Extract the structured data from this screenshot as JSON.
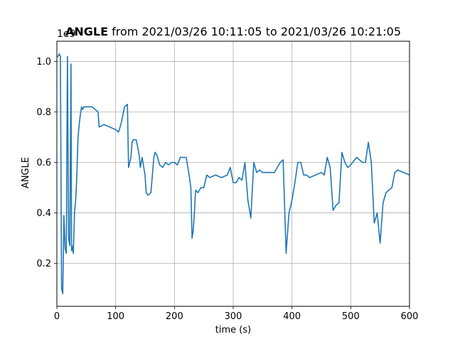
{
  "chart_data": {
    "type": "line",
    "title_bold": "ANGLE",
    "title_rest": " from 2021/03/26 10:11:05 to 2021/03/26 10:21:05",
    "xlabel": "time (s)",
    "ylabel": "ANGLE",
    "offset_label": "1e9",
    "xlim": [
      0,
      600
    ],
    "ylim": [
      0.03,
      1.08
    ],
    "xticks": [
      0,
      100,
      200,
      300,
      400,
      500,
      600
    ],
    "xtick_labels": [
      "0",
      "100",
      "200",
      "300",
      "400",
      "500",
      "600"
    ],
    "yticks": [
      0.2,
      0.4,
      0.6,
      0.8,
      1.0
    ],
    "ytick_labels": [
      "0.2",
      "0.4",
      "0.6",
      "0.8",
      "1.0"
    ],
    "grid": true,
    "line_color": "#1f77b4",
    "series": [
      {
        "x": [
          0,
          2,
          4,
          6,
          8,
          10,
          12,
          14,
          16,
          18,
          20,
          22,
          24,
          25,
          26,
          28,
          30,
          32,
          34,
          36,
          38,
          40,
          42,
          44,
          46,
          50,
          60,
          70,
          72,
          80,
          90,
          100,
          105,
          110,
          115,
          120,
          122,
          124,
          126,
          128,
          130,
          135,
          140,
          142,
          145,
          150,
          152,
          155,
          160,
          165,
          167,
          170,
          175,
          180,
          185,
          190,
          195,
          200,
          205,
          210,
          215,
          220,
          225,
          228,
          230,
          232,
          234,
          236,
          240,
          245,
          250,
          255,
          260,
          270,
          280,
          290,
          295,
          300,
          305,
          310,
          315,
          320,
          325,
          330,
          335,
          340,
          345,
          350,
          355,
          360,
          370,
          380,
          385,
          390,
          395,
          400,
          405,
          410,
          415,
          420,
          425,
          430,
          440,
          450,
          455,
          460,
          465,
          470,
          475,
          480,
          485,
          490,
          495,
          500,
          510,
          520,
          525,
          530,
          535,
          540,
          545,
          550,
          555,
          560,
          570,
          575,
          580,
          590,
          600
        ],
        "y": [
          1.02,
          1.02,
          1.03,
          1.02,
          0.1,
          0.08,
          0.39,
          0.26,
          0.24,
          1.02,
          0.3,
          0.27,
          0.99,
          0.25,
          0.27,
          0.24,
          0.4,
          0.45,
          0.55,
          0.7,
          0.75,
          0.79,
          0.82,
          0.81,
          0.82,
          0.82,
          0.82,
          0.8,
          0.74,
          0.75,
          0.74,
          0.73,
          0.72,
          0.76,
          0.82,
          0.83,
          0.58,
          0.6,
          0.62,
          0.68,
          0.69,
          0.69,
          0.63,
          0.58,
          0.62,
          0.55,
          0.48,
          0.47,
          0.48,
          0.62,
          0.64,
          0.63,
          0.59,
          0.58,
          0.6,
          0.59,
          0.6,
          0.6,
          0.59,
          0.62,
          0.62,
          0.62,
          0.55,
          0.5,
          0.3,
          0.33,
          0.4,
          0.49,
          0.48,
          0.5,
          0.5,
          0.55,
          0.54,
          0.55,
          0.54,
          0.55,
          0.58,
          0.52,
          0.52,
          0.54,
          0.53,
          0.6,
          0.45,
          0.38,
          0.6,
          0.56,
          0.57,
          0.56,
          0.56,
          0.56,
          0.56,
          0.6,
          0.61,
          0.24,
          0.4,
          0.45,
          0.52,
          0.6,
          0.6,
          0.55,
          0.55,
          0.54,
          0.55,
          0.56,
          0.55,
          0.62,
          0.58,
          0.41,
          0.43,
          0.44,
          0.64,
          0.6,
          0.58,
          0.59,
          0.62,
          0.6,
          0.6,
          0.68,
          0.6,
          0.36,
          0.4,
          0.28,
          0.44,
          0.48,
          0.5,
          0.56,
          0.57,
          0.56,
          0.55
        ]
      }
    ]
  }
}
